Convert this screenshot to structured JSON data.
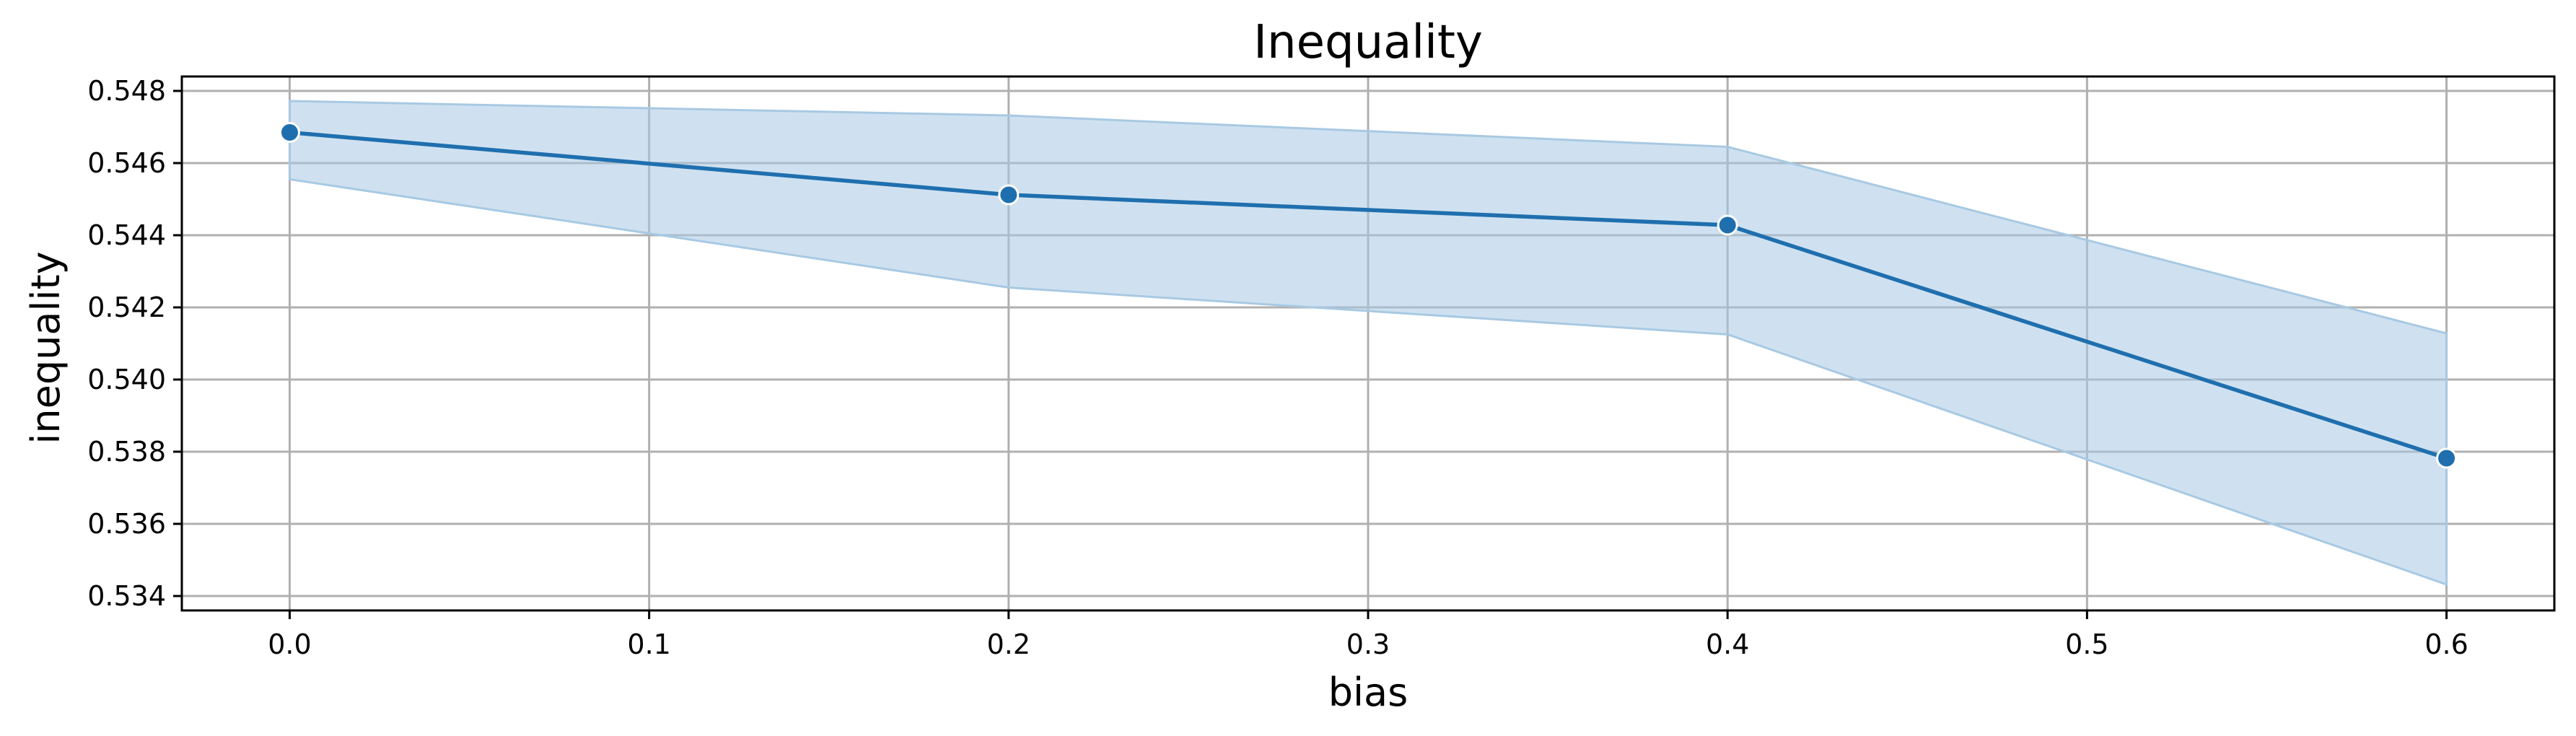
{
  "chart_data": {
    "type": "line",
    "title": "Inequality",
    "xlabel": "bias",
    "ylabel": "inequality",
    "xlim": [
      -0.03,
      0.63
    ],
    "ylim": [
      0.5336,
      0.5484
    ],
    "x_ticks": [
      "0.0",
      "0.1",
      "0.2",
      "0.3",
      "0.4",
      "0.5",
      "0.6"
    ],
    "y_ticks": [
      "0.534",
      "0.536",
      "0.538",
      "0.540",
      "0.542",
      "0.544",
      "0.546",
      "0.548"
    ],
    "grid": true,
    "series": [
      {
        "x": [
          0.0,
          0.2,
          0.4,
          0.6
        ],
        "y": [
          0.54685,
          0.54512,
          0.54428,
          0.53782
        ],
        "ci_lower": [
          0.54555,
          0.54255,
          0.54125,
          0.53432
        ],
        "ci_upper": [
          0.54772,
          0.54732,
          0.54645,
          0.54128
        ]
      }
    ],
    "colors": {
      "line": "#1f6fae",
      "band": "#a8c9e3",
      "grid": "#b0b0b0",
      "marker_edge": "#ffffff"
    }
  }
}
